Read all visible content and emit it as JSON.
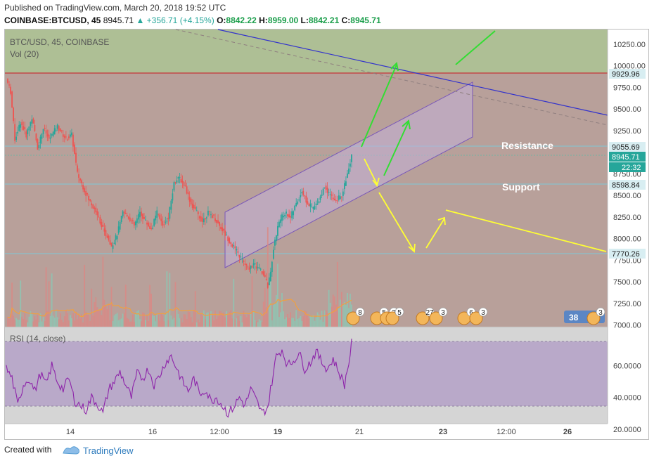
{
  "header": {
    "published": "Published on TradingView.com, March 20, 2018 19:52 UTC",
    "symbol": "COINBASE:BTCUSD, 45",
    "last": "8945.71",
    "change": "▲ +356.71 (+4.15%)",
    "o_label": "O:",
    "o_val": "8842.22",
    "h_label": "H:",
    "h_val": "8959.00",
    "l_label": "L:",
    "l_val": "8842.21",
    "c_label": "C:",
    "c_val": "8945.71"
  },
  "pane_labels": {
    "main": "BTC/USD, 45, COINBASE",
    "vol": "Vol (20)",
    "rsi": "RSI (14, close)"
  },
  "annotations": {
    "resistance": "Resistance",
    "support": "Support"
  },
  "price_badges": {
    "p1": "9929.96",
    "p2": "9055.69",
    "p3": "8945.71",
    "p4": "22:32",
    "p5": "8598.84",
    "p6": "7770.26"
  },
  "event_labels": [
    "8",
    "5",
    "2",
    "5",
    "27",
    "3",
    "6",
    "3",
    "38",
    "3"
  ],
  "footer": {
    "created": "Created with",
    "brand": "TradingView"
  },
  "colors": {
    "up": "#26a69a",
    "down": "#ef5350",
    "green_zone": "#aebf95",
    "red_zone": "#b8a09a",
    "channel": "#c3b0d8",
    "arrow_green": "#33dd33",
    "arrow_yellow": "#ffff33",
    "trend_blue": "#3333cc"
  },
  "chart_data": {
    "type": "candlestick",
    "title": "BTC/USD, 45, COINBASE",
    "y_ticks": [
      "10250.00",
      "10000.00",
      "9750.00",
      "9500.00",
      "9250.00",
      "9000.00",
      "8750.00",
      "8500.00",
      "8250.00",
      "8000.00",
      "7750.00",
      "7500.00",
      "7250.00",
      "7000.00"
    ],
    "ylim": [
      6980,
      10420
    ],
    "x_ticks": [
      "14",
      "16",
      "12:00",
      "19",
      "21",
      "23",
      "12:00",
      "26"
    ],
    "rsi_ticks": [
      "60.0000",
      "40.0000",
      "20.0000"
    ],
    "rsi_range": [
      20,
      80
    ],
    "horizontal_levels": [
      9929.96,
      9055.69,
      8598.84,
      7770.26
    ],
    "price_path": [
      [
        0,
        9850
      ],
      [
        3,
        9700
      ],
      [
        6,
        9150
      ],
      [
        10,
        9350
      ],
      [
        14,
        9200
      ],
      [
        18,
        9400
      ],
      [
        22,
        9050
      ],
      [
        26,
        9280
      ],
      [
        30,
        9150
      ],
      [
        36,
        9300
      ],
      [
        42,
        9150
      ],
      [
        46,
        9200
      ],
      [
        50,
        8750
      ],
      [
        54,
        8600
      ],
      [
        58,
        8450
      ],
      [
        62,
        8350
      ],
      [
        66,
        8200
      ],
      [
        70,
        8050
      ],
      [
        74,
        7900
      ],
      [
        78,
        8050
      ],
      [
        82,
        8300
      ],
      [
        86,
        8250
      ],
      [
        90,
        8150
      ],
      [
        94,
        8300
      ],
      [
        98,
        8200
      ],
      [
        102,
        8100
      ],
      [
        106,
        8300
      ],
      [
        110,
        8150
      ],
      [
        114,
        8250
      ],
      [
        118,
        8650
      ],
      [
        122,
        8700
      ],
      [
        126,
        8600
      ],
      [
        130,
        8400
      ],
      [
        134,
        8300
      ],
      [
        138,
        8200
      ],
      [
        142,
        8300
      ],
      [
        146,
        8250
      ],
      [
        150,
        8150
      ],
      [
        154,
        8050
      ],
      [
        158,
        7950
      ],
      [
        162,
        7850
      ],
      [
        166,
        7750
      ],
      [
        170,
        7650
      ],
      [
        174,
        7700
      ],
      [
        178,
        7650
      ],
      [
        182,
        7550
      ],
      [
        184,
        7450
      ],
      [
        186,
        7600
      ],
      [
        188,
        7900
      ],
      [
        192,
        8200
      ],
      [
        196,
        8300
      ],
      [
        200,
        8250
      ],
      [
        204,
        8400
      ],
      [
        208,
        8550
      ],
      [
        212,
        8400
      ],
      [
        216,
        8350
      ],
      [
        220,
        8450
      ],
      [
        224,
        8600
      ],
      [
        228,
        8500
      ],
      [
        232,
        8450
      ],
      [
        236,
        8500
      ],
      [
        240,
        8750
      ],
      [
        243,
        8945
      ]
    ],
    "rsi_path": [
      [
        0,
        58
      ],
      [
        4,
        52
      ],
      [
        8,
        35
      ],
      [
        12,
        48
      ],
      [
        16,
        52
      ],
      [
        20,
        44
      ],
      [
        24,
        55
      ],
      [
        28,
        48
      ],
      [
        32,
        60
      ],
      [
        36,
        50
      ],
      [
        40,
        45
      ],
      [
        44,
        52
      ],
      [
        48,
        38
      ],
      [
        52,
        35
      ],
      [
        56,
        32
      ],
      [
        60,
        40
      ],
      [
        64,
        36
      ],
      [
        68,
        30
      ],
      [
        72,
        45
      ],
      [
        76,
        50
      ],
      [
        80,
        56
      ],
      [
        84,
        48
      ],
      [
        88,
        40
      ],
      [
        92,
        55
      ],
      [
        96,
        52
      ],
      [
        100,
        58
      ],
      [
        104,
        48
      ],
      [
        108,
        54
      ],
      [
        112,
        62
      ],
      [
        116,
        66
      ],
      [
        120,
        58
      ],
      [
        124,
        50
      ],
      [
        128,
        44
      ],
      [
        132,
        52
      ],
      [
        136,
        42
      ],
      [
        140,
        45
      ],
      [
        144,
        38
      ],
      [
        148,
        40
      ],
      [
        152,
        35
      ],
      [
        156,
        30
      ],
      [
        160,
        34
      ],
      [
        164,
        40
      ],
      [
        168,
        35
      ],
      [
        172,
        45
      ],
      [
        176,
        38
      ],
      [
        180,
        30
      ],
      [
        184,
        34
      ],
      [
        186,
        45
      ],
      [
        190,
        66
      ],
      [
        194,
        70
      ],
      [
        198,
        60
      ],
      [
        202,
        63
      ],
      [
        206,
        68
      ],
      [
        210,
        58
      ],
      [
        214,
        62
      ],
      [
        218,
        69
      ],
      [
        222,
        62
      ],
      [
        226,
        58
      ],
      [
        230,
        64
      ],
      [
        234,
        56
      ],
      [
        238,
        48
      ],
      [
        241,
        62
      ],
      [
        243,
        74
      ]
    ]
  }
}
